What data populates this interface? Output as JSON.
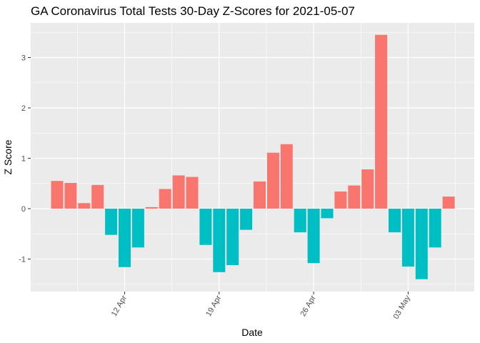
{
  "chart_data": {
    "type": "bar",
    "title": "GA Coronavirus Total Tests 30-Day Z-Scores for 2021-05-07",
    "xlabel": "Date",
    "ylabel": "Z Score",
    "ylim": [
      -1.6,
      3.6
    ],
    "y_ticks": [
      -1,
      0,
      1,
      2,
      3
    ],
    "x_ticks": [
      {
        "date": "2021-04-12",
        "label": "12 Apr"
      },
      {
        "date": "2021-04-19",
        "label": "19 Apr"
      },
      {
        "date": "2021-04-26",
        "label": "26 Apr"
      },
      {
        "date": "2021-05-03",
        "label": "03 May"
      }
    ],
    "dates": [
      "2021-04-07",
      "2021-04-08",
      "2021-04-09",
      "2021-04-10",
      "2021-04-11",
      "2021-04-12",
      "2021-04-13",
      "2021-04-14",
      "2021-04-15",
      "2021-04-16",
      "2021-04-17",
      "2021-04-18",
      "2021-04-19",
      "2021-04-20",
      "2021-04-21",
      "2021-04-22",
      "2021-04-23",
      "2021-04-24",
      "2021-04-25",
      "2021-04-26",
      "2021-04-27",
      "2021-04-28",
      "2021-04-29",
      "2021-04-30",
      "2021-05-01",
      "2021-05-02",
      "2021-05-03",
      "2021-05-04",
      "2021-05-05",
      "2021-05-06",
      "2021-05-07"
    ],
    "values": [
      0.55,
      0.51,
      0.11,
      0.47,
      -0.52,
      -1.16,
      -0.77,
      0.03,
      0.39,
      0.66,
      0.63,
      -0.72,
      -1.26,
      -1.12,
      -0.42,
      0.54,
      1.11,
      1.28,
      -0.47,
      -1.08,
      -0.19,
      0.34,
      0.46,
      0.78,
      3.45,
      -0.47,
      -1.15,
      -1.4,
      -0.77,
      0.24,
      0.0
    ],
    "grid": true,
    "legend": "none",
    "colors": {
      "positive": "#f8766d",
      "negative": "#00bfc4",
      "panel": "#ebebeb",
      "grid": "#ffffff"
    }
  }
}
